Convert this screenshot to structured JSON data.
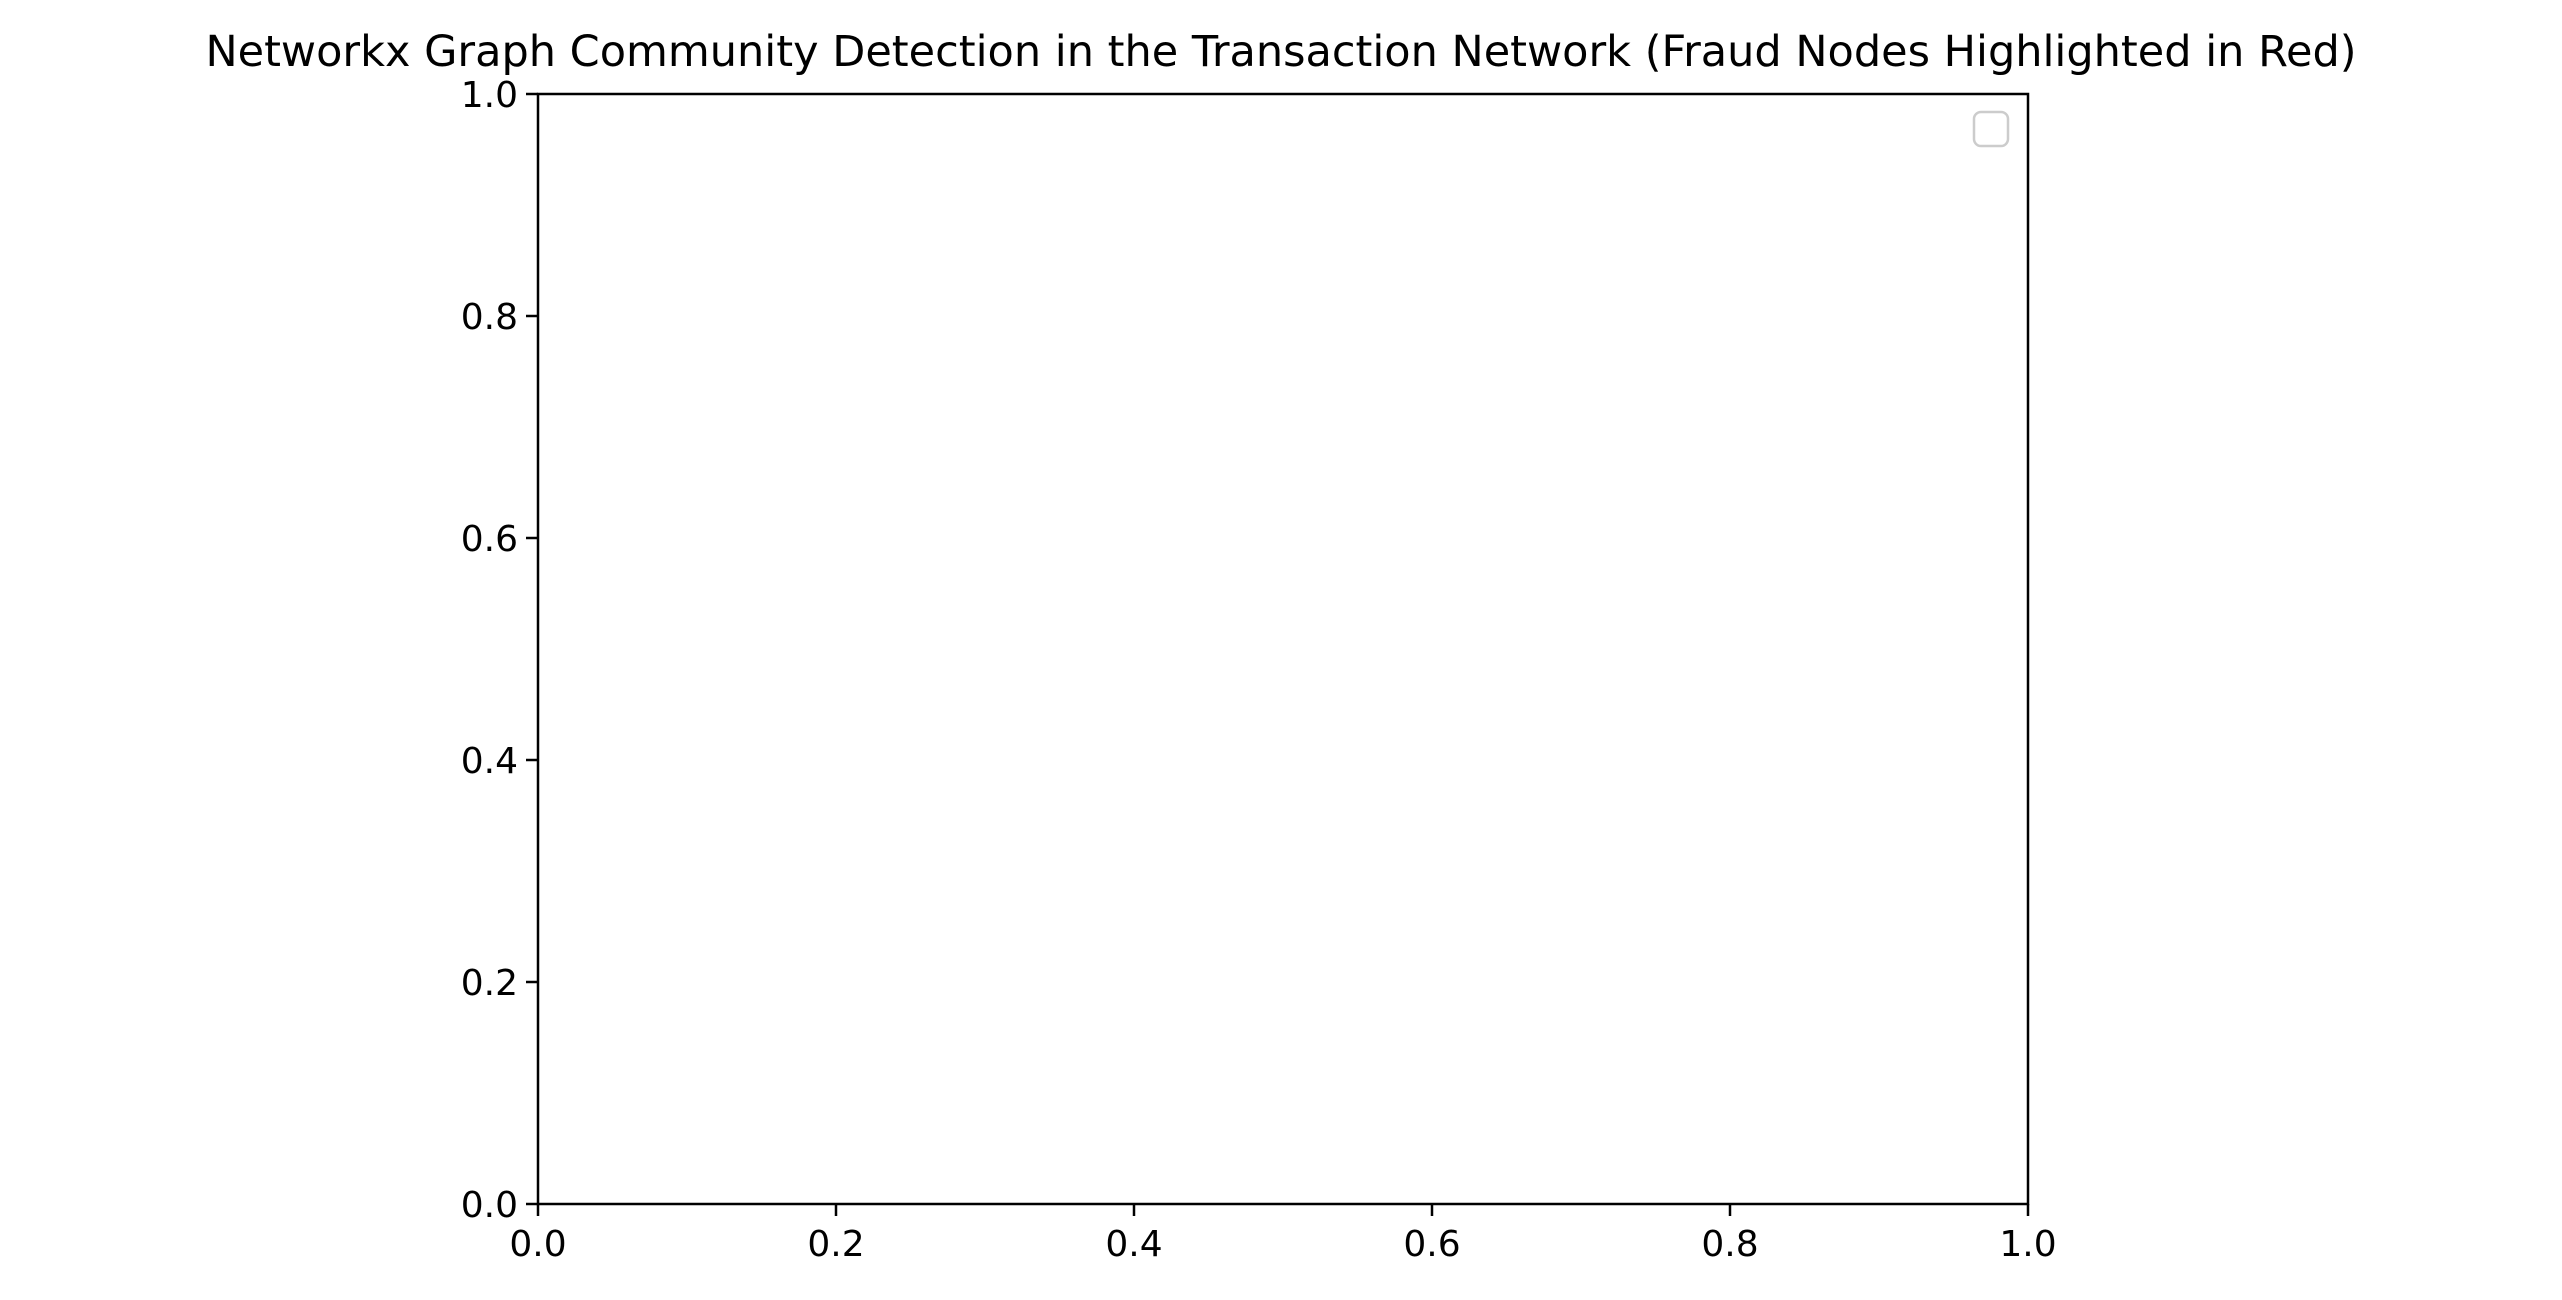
{
  "chart_data": {
    "type": "scatter",
    "title": "Networkx Graph Community Detection in the Transaction Network (Fraud Nodes Highlighted in Red)",
    "xlabel": "",
    "ylabel": "",
    "xlim": [
      0.0,
      1.0
    ],
    "ylim": [
      0.0,
      1.0
    ],
    "x_ticks": [
      "0.0",
      "0.2",
      "0.4",
      "0.6",
      "0.8",
      "1.0"
    ],
    "y_ticks": [
      "0.0",
      "0.2",
      "0.4",
      "0.6",
      "0.8",
      "1.0"
    ],
    "series": [],
    "grid": false,
    "legend": {
      "placement": "upper-right",
      "entries": []
    }
  },
  "colors": {
    "axes": "#000000",
    "legend_border": "#cccccc",
    "background": "#ffffff"
  }
}
